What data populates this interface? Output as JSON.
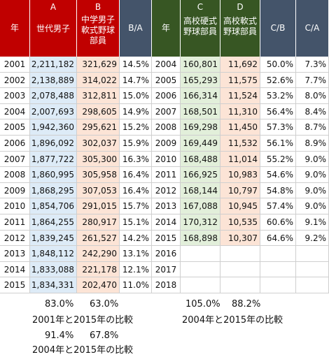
{
  "left_table": {
    "headers": {
      "year": "年",
      "a_letter": "A",
      "a_label": "世代男子",
      "b_letter": "B",
      "b_label_lines": [
        "中学男子",
        "軟式野球",
        "部員"
      ],
      "ratio": "B/A"
    },
    "rows": [
      {
        "year": "2001",
        "a": "2,211,182",
        "b": "321,629",
        "ratio": "14.5%"
      },
      {
        "year": "2002",
        "a": "2,138,889",
        "b": "314,022",
        "ratio": "14.7%"
      },
      {
        "year": "2003",
        "a": "2,078,488",
        "b": "312,811",
        "ratio": "15.0%"
      },
      {
        "year": "2004",
        "a": "2,007,693",
        "b": "298,605",
        "ratio": "14.9%"
      },
      {
        "year": "2005",
        "a": "1,942,360",
        "b": "295,621",
        "ratio": "15.2%"
      },
      {
        "year": "2006",
        "a": "1,896,092",
        "b": "302,037",
        "ratio": "15.9%"
      },
      {
        "year": "2007",
        "a": "1,877,722",
        "b": "305,300",
        "ratio": "16.3%"
      },
      {
        "year": "2008",
        "a": "1,860,995",
        "b": "305,958",
        "ratio": "16.4%"
      },
      {
        "year": "2009",
        "a": "1,868,295",
        "b": "307,053",
        "ratio": "16.4%"
      },
      {
        "year": "2010",
        "a": "1,854,706",
        "b": "291,015",
        "ratio": "15.7%"
      },
      {
        "year": "2011",
        "a": "1,864,255",
        "b": "280,917",
        "ratio": "15.1%"
      },
      {
        "year": "2012",
        "a": "1,839,245",
        "b": "261,527",
        "ratio": "14.2%"
      },
      {
        "year": "2013",
        "a": "1,848,112",
        "b": "242,290",
        "ratio": "13.1%"
      },
      {
        "year": "2014",
        "a": "1,833,088",
        "b": "221,178",
        "ratio": "12.1%"
      },
      {
        "year": "2015",
        "a": "1,834,331",
        "b": "202,470",
        "ratio": "11.0%"
      }
    ]
  },
  "right_table": {
    "headers": {
      "year": "年",
      "c_letter": "C",
      "c_label_lines": [
        "高校硬式",
        "野球部員"
      ],
      "d_letter": "D",
      "d_label_lines": [
        "高校軟式",
        "野球部員"
      ],
      "cb": "C/B",
      "ca": "C/A"
    },
    "rows": [
      {
        "year": "2004",
        "c": "160,801",
        "d": "11,692",
        "cb": "50.0%",
        "ca": "7.3%"
      },
      {
        "year": "2005",
        "c": "165,293",
        "d": "11,575",
        "cb": "52.6%",
        "ca": "7.7%"
      },
      {
        "year": "2006",
        "c": "166,314",
        "d": "11,524",
        "cb": "53.2%",
        "ca": "8.0%"
      },
      {
        "year": "2007",
        "c": "168,501",
        "d": "11,310",
        "cb": "56.4%",
        "ca": "8.4%"
      },
      {
        "year": "2008",
        "c": "169,298",
        "d": "11,450",
        "cb": "57.3%",
        "ca": "8.7%"
      },
      {
        "year": "2009",
        "c": "169,449",
        "d": "11,532",
        "cb": "56.1%",
        "ca": "8.9%"
      },
      {
        "year": "2010",
        "c": "168,488",
        "d": "11,014",
        "cb": "55.2%",
        "ca": "9.0%"
      },
      {
        "year": "2011",
        "c": "166,925",
        "d": "10,983",
        "cb": "54.6%",
        "ca": "9.0%"
      },
      {
        "year": "2012",
        "c": "168,144",
        "d": "10,797",
        "cb": "54.8%",
        "ca": "9.0%"
      },
      {
        "year": "2013",
        "c": "167,088",
        "d": "10,945",
        "cb": "57.4%",
        "ca": "9.0%"
      },
      {
        "year": "2014",
        "c": "170,312",
        "d": "10,535",
        "cb": "60.6%",
        "ca": "9.1%"
      },
      {
        "year": "2015",
        "c": "168,898",
        "d": "10,307",
        "cb": "64.6%",
        "ca": "9.2%"
      },
      {
        "year": "2016",
        "c": "",
        "d": "",
        "cb": "",
        "ca": ""
      },
      {
        "year": "2017",
        "c": "",
        "d": "",
        "cb": "",
        "ca": ""
      },
      {
        "year": "2018",
        "c": "",
        "d": "",
        "cb": "",
        "ca": ""
      }
    ]
  },
  "summary": {
    "left_2001_vs_2015": {
      "a_pct": "83.0%",
      "b_pct": "63.0%",
      "caption": "2001年と2015年の比較"
    },
    "left_2004_vs_2015": {
      "a_pct": "91.4%",
      "b_pct": "67.8%",
      "caption": "2004年と2015年の比較"
    },
    "right_2004_vs_2015": {
      "c_pct": "105.0%",
      "d_pct": "88.2%",
      "caption": "2004年と2015年の比較"
    }
  },
  "colors": {
    "left_header": "#c00000",
    "right_header": "#375623",
    "ratio_header": "#44546a",
    "col_a_fill": "#ddebf7",
    "col_b_fill": "#fce4d6",
    "col_c_fill": "#e2efda",
    "col_d_fill": "#fce4d6"
  }
}
